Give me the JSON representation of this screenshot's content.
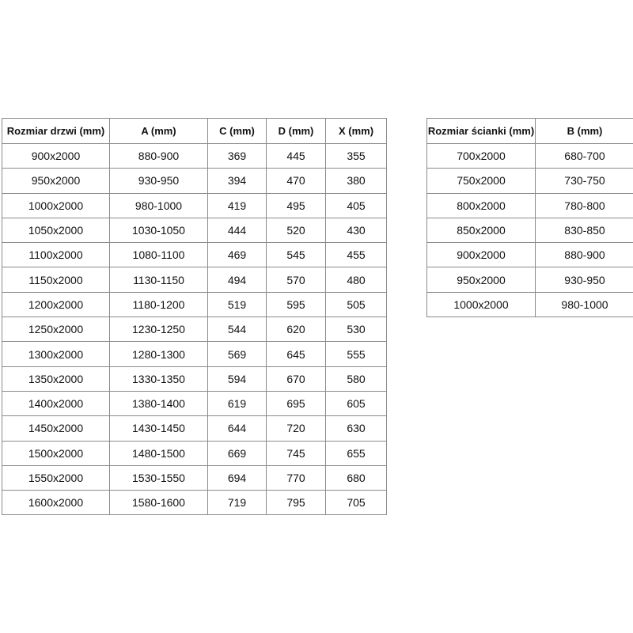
{
  "door_table": {
    "headers": [
      "Rozmiar drzwi (mm)",
      "A (mm)",
      "C (mm)",
      "D (mm)",
      "X (mm)"
    ],
    "rows": [
      [
        "900x2000",
        "880-900",
        "369",
        "445",
        "355"
      ],
      [
        "950x2000",
        "930-950",
        "394",
        "470",
        "380"
      ],
      [
        "1000x2000",
        "980-1000",
        "419",
        "495",
        "405"
      ],
      [
        "1050x2000",
        "1030-1050",
        "444",
        "520",
        "430"
      ],
      [
        "1100x2000",
        "1080-1100",
        "469",
        "545",
        "455"
      ],
      [
        "1150x2000",
        "1130-1150",
        "494",
        "570",
        "480"
      ],
      [
        "1200x2000",
        "1180-1200",
        "519",
        "595",
        "505"
      ],
      [
        "1250x2000",
        "1230-1250",
        "544",
        "620",
        "530"
      ],
      [
        "1300x2000",
        "1280-1300",
        "569",
        "645",
        "555"
      ],
      [
        "1350x2000",
        "1330-1350",
        "594",
        "670",
        "580"
      ],
      [
        "1400x2000",
        "1380-1400",
        "619",
        "695",
        "605"
      ],
      [
        "1450x2000",
        "1430-1450",
        "644",
        "720",
        "630"
      ],
      [
        "1500x2000",
        "1480-1500",
        "669",
        "745",
        "655"
      ],
      [
        "1550x2000",
        "1530-1550",
        "694",
        "770",
        "680"
      ],
      [
        "1600x2000",
        "1580-1600",
        "719",
        "795",
        "705"
      ]
    ]
  },
  "wall_table": {
    "headers": [
      "Rozmiar ścianki (mm)",
      "B (mm)"
    ],
    "rows": [
      [
        "700x2000",
        "680-700"
      ],
      [
        "750x2000",
        "730-750"
      ],
      [
        "800x2000",
        "780-800"
      ],
      [
        "850x2000",
        "830-850"
      ],
      [
        "900x2000",
        "880-900"
      ],
      [
        "950x2000",
        "930-950"
      ],
      [
        "1000x2000",
        "980-1000"
      ]
    ]
  }
}
